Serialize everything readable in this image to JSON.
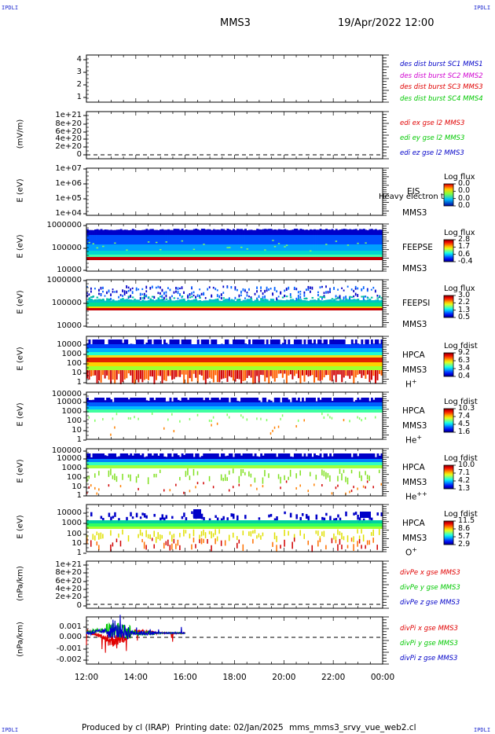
{
  "corner_labels": {
    "tl": "IPDLI",
    "tr": "IPDLI",
    "bl": "IPDLI",
    "br": "IPDLI"
  },
  "header": {
    "spacecraft": "MMS3",
    "datetime": "19/Apr/2022 12:00"
  },
  "footer": {
    "producer": "Produced by cl (IRAP)",
    "printing": "Printing date: 02/Jan/2025",
    "file": "mms_mms3_srvy_vue_web2.cl"
  },
  "x_axis": {
    "ticks": [
      "12:00",
      "14:00",
      "16:00",
      "18:00",
      "20:00",
      "22:00",
      "00:00"
    ]
  },
  "colors": {
    "red": "#e00000",
    "green": "#00c800",
    "blue": "#0000c8",
    "magenta": "#d000d0",
    "axis": "#000000"
  },
  "panels": [
    {
      "id": "burst",
      "ylabel": "",
      "yticks": [
        "4",
        "3",
        "2",
        "1"
      ],
      "legend": [
        {
          "text": "des dist burst SC1 MMS1",
          "color": "#0000c8"
        },
        {
          "text": "des dist burst SC2 MMS2",
          "color": "#d000d0"
        },
        {
          "text": "des dist burst SC3 MMS3",
          "color": "#e00000"
        },
        {
          "text": "des dist burst SC4 MMS4",
          "color": "#00c800"
        }
      ]
    },
    {
      "id": "edi",
      "ylabel": "(mV/m)",
      "yticks": [
        "1e+21",
        "8e+20",
        "6e+20",
        "4e+20",
        "2e+20",
        "0"
      ],
      "legend": [
        {
          "text": "edi ex gse l2 MMS3",
          "color": "#e00000"
        },
        {
          "text": "edi ey gse l2 MMS3",
          "color": "#00c800"
        },
        {
          "text": "edi ez gse l2 MMS3",
          "color": "#0000c8"
        }
      ]
    },
    {
      "id": "eis",
      "ylabel": "E (eV)",
      "yticks": [
        "1e+07",
        "1e+06",
        "1e+05",
        "1e+04"
      ],
      "inst": [
        "EIS",
        "MMS3"
      ],
      "overlay_text": "Heavy electron to",
      "cb_title": "Log flux",
      "cb_ticks": [
        "0.0",
        "0.0",
        "0.0",
        "0.0"
      ],
      "cb_type": "eis"
    },
    {
      "id": "feepse",
      "ylabel": "E (eV)",
      "yticks": [
        "1000000",
        "100000",
        "10000"
      ],
      "inst": [
        "FEEPSE",
        "MMS3"
      ],
      "cb_title": "Log flux",
      "cb_ticks": [
        "2.8",
        "1.7",
        "0.6",
        "-0.4"
      ]
    },
    {
      "id": "feepsi",
      "ylabel": "E (eV)",
      "yticks": [
        "1000000",
        "100000",
        "10000"
      ],
      "inst": [
        "FEEPSI",
        "MMS3"
      ],
      "cb_title": "Log flux",
      "cb_ticks": [
        "3.0",
        "2.2",
        "1.3",
        "0.5"
      ]
    },
    {
      "id": "hpca_h",
      "ylabel": "E (eV)",
      "yticks": [
        "10000",
        "1000",
        "100",
        "10",
        "1"
      ],
      "inst": [
        "HPCA",
        "MMS3"
      ],
      "species": "H",
      "species_sup": "+",
      "cb_title": "Log fdist",
      "cb_ticks": [
        "9.2",
        "6.3",
        "3.4",
        "0.4"
      ]
    },
    {
      "id": "hpca_he1",
      "ylabel": "E (eV)",
      "yticks": [
        "100000",
        "10000",
        "1000",
        "100",
        "10",
        "1"
      ],
      "inst": [
        "HPCA",
        "MMS3"
      ],
      "species": "He",
      "species_sup": "+",
      "cb_title": "Log fdist",
      "cb_ticks": [
        "10.3",
        "7.4",
        "4.5",
        "1.6"
      ]
    },
    {
      "id": "hpca_he2",
      "ylabel": "E (eV)",
      "yticks": [
        "100000",
        "10000",
        "1000",
        "100",
        "10",
        "1"
      ],
      "inst": [
        "HPCA",
        "MMS3"
      ],
      "species": "He",
      "species_sup": "++",
      "cb_title": "Log fdist",
      "cb_ticks": [
        "10.0",
        "7.1",
        "4.2",
        "1.3"
      ]
    },
    {
      "id": "hpca_o",
      "ylabel": "E (eV)",
      "yticks": [
        "10000",
        "1000",
        "100",
        "10",
        "1"
      ],
      "inst": [
        "HPCA",
        "MMS3"
      ],
      "species": "O",
      "species_sup": "+",
      "cb_title": "Log fdist",
      "cb_ticks": [
        "11.5",
        "8.6",
        "5.7",
        "2.9"
      ]
    },
    {
      "id": "divpe",
      "ylabel": "(nPa/km)",
      "yticks": [
        "1e+21",
        "8e+20",
        "6e+20",
        "4e+20",
        "2e+20",
        "0"
      ],
      "legend": [
        {
          "text": "divPe x gse MMS3",
          "color": "#e00000"
        },
        {
          "text": "divPe y gse MMS3",
          "color": "#00c800"
        },
        {
          "text": "divPe z gse MMS3",
          "color": "#0000c8"
        }
      ]
    },
    {
      "id": "divpi",
      "ylabel": "(nPa/km)",
      "yticks": [
        "0.001",
        "0.000",
        "-0.001",
        "-0.002"
      ],
      "legend": [
        {
          "text": "divPi x gse MMS3",
          "color": "#e00000"
        },
        {
          "text": "divPi y gse MMS3",
          "color": "#00c800"
        },
        {
          "text": "divPi z gse MMS3",
          "color": "#0000c8"
        }
      ]
    }
  ],
  "chart_data": {
    "type": "line",
    "title": "MMS3 19/Apr/2022 12:00",
    "xlabel": "",
    "x_ticks": [
      "12:00",
      "14:00",
      "16:00",
      "18:00",
      "20:00",
      "22:00",
      "00:00"
    ],
    "divPi_ylim": [
      -0.0025,
      0.0013
    ],
    "divPi_data_end": "16:00",
    "divPi_series": [
      {
        "name": "divPi x gse MMS3",
        "x": [
          "12:00",
          "13:00",
          "14:00",
          "15:00",
          "16:00"
        ],
        "values": [
          0.0002,
          -0.0006,
          0.0001,
          0.0,
          0.0
        ]
      },
      {
        "name": "divPi y gse MMS3",
        "x": [
          "12:00",
          "13:00",
          "14:00",
          "15:00",
          "16:00"
        ],
        "values": [
          0.0001,
          0.0003,
          0.0,
          0.0,
          0.0
        ]
      },
      {
        "name": "divPi z gse MMS3",
        "x": [
          "12:00",
          "13:00",
          "14:00",
          "15:00",
          "16:00"
        ],
        "values": [
          0.0,
          0.0002,
          0.0,
          0.0,
          0.0
        ]
      }
    ]
  }
}
